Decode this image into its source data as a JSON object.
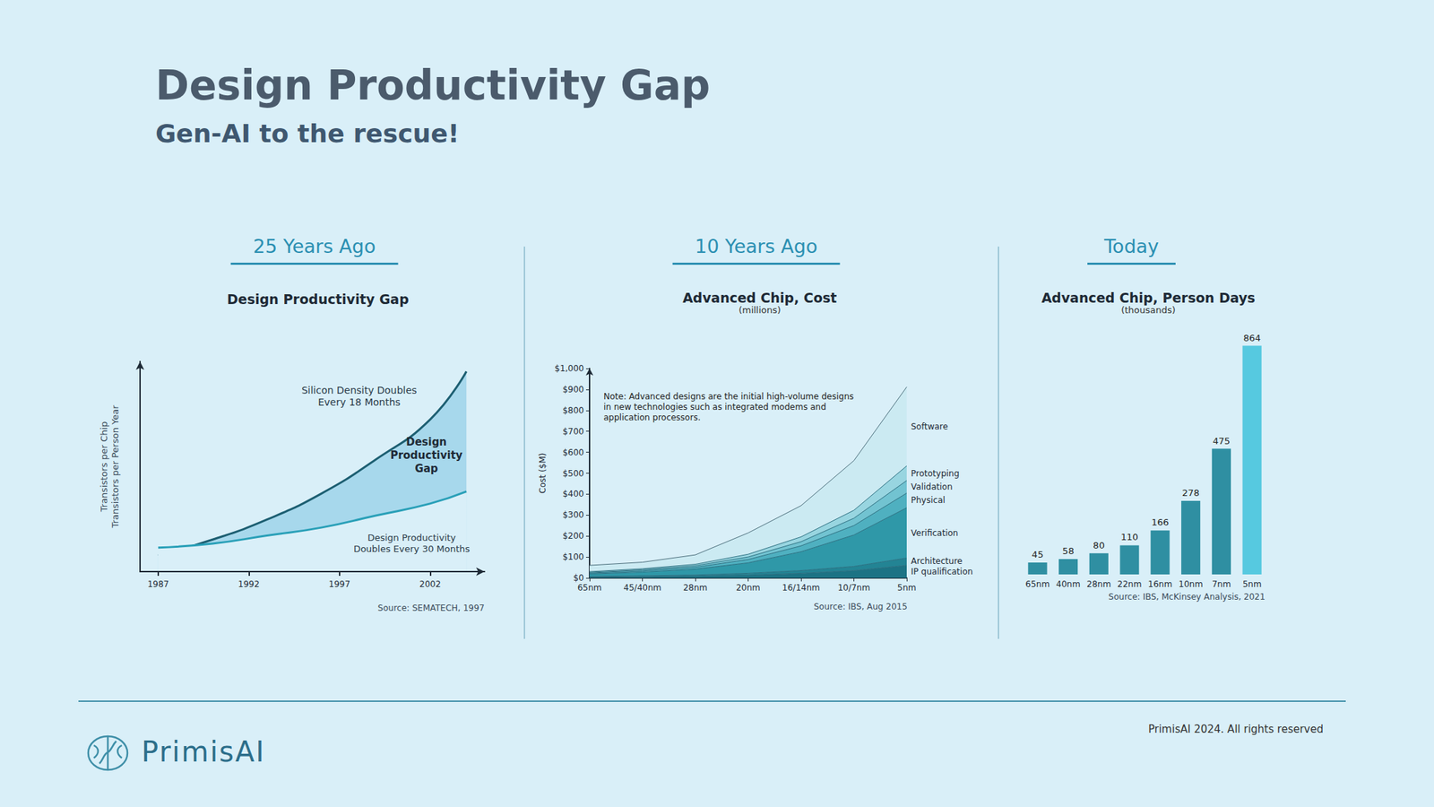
{
  "title": "Design Productivity Gap",
  "subtitle": "Gen-AI to the rescue!",
  "logo": "PrimisAI",
  "footer": "PrimisAI 2024. All rights reserved",
  "chart_data": [
    {
      "type": "line",
      "heading": "25 Years Ago",
      "title": "Design Productivity Gap",
      "ylabel": [
        "Transistors per Chip",
        "Transistors per Person Year"
      ],
      "annotation": "Design Productivity Gap",
      "source": "Source: SEMATECH, 1997",
      "x": [
        1987,
        1990,
        1993,
        1996,
        1999,
        2002,
        2004
      ],
      "xlim": [
        1986,
        2005
      ],
      "xticks": [
        1987,
        1992,
        1997,
        2002
      ],
      "ylim": [
        0,
        105
      ],
      "tick_labels": "x",
      "grid": false,
      "series": [
        {
          "name": "Silicon Density Doubles Every 18 Months",
          "color": "#1d5f72",
          "values": [
            8,
            16,
            26,
            39,
            56,
            76,
            100
          ]
        },
        {
          "name": "Design Productivity Doubles Every 30 Months",
          "color": "#2aa0b8",
          "values": [
            12,
            14,
            18,
            22,
            28,
            34,
            40
          ]
        }
      ]
    },
    {
      "type": "area",
      "heading": "10 Years Ago",
      "title": "Advanced Chip, Cost",
      "subtitle": "(millions)",
      "ylabel": "Cost ($M)",
      "note": "Note: Advanced designs are the initial high-volume designs in new technologies such as integrated modems and application processors.",
      "source": "Source: IBS, Aug 2015",
      "categories": [
        "65nm",
        "45/40nm",
        "28nm",
        "20nm",
        "16/14nm",
        "10/7nm",
        "5nm"
      ],
      "ylim": [
        0,
        1000
      ],
      "yticks": [
        {
          "value": 0,
          "label": "$0"
        },
        {
          "value": 100,
          "label": "$100"
        },
        {
          "value": 200,
          "label": "$200"
        },
        {
          "value": 300,
          "label": "$300"
        },
        {
          "value": 400,
          "label": "$400"
        },
        {
          "value": 500,
          "label": "$500"
        },
        {
          "value": 600,
          "label": "$600"
        },
        {
          "value": 700,
          "label": "$700"
        },
        {
          "value": 800,
          "label": "$800"
        },
        {
          "value": 900,
          "label": "$900"
        },
        {
          "value": 1000,
          "label": "$1,000"
        }
      ],
      "stacked": true,
      "grid": false,
      "series": [
        {
          "name": "IP qualification",
          "color": "#1c7384",
          "values": [
            4,
            6,
            9,
            14,
            22,
            35,
            60
          ]
        },
        {
          "name": "Architecture",
          "color": "#238494",
          "values": [
            3,
            4,
            5,
            8,
            13,
            20,
            35
          ]
        },
        {
          "name": "Verification",
          "color": "#2f98a8",
          "values": [
            12,
            18,
            28,
            50,
            90,
            150,
            240
          ]
        },
        {
          "name": "Physical",
          "color": "#4fb0c0",
          "values": [
            4,
            6,
            9,
            16,
            28,
            45,
            70
          ]
        },
        {
          "name": "Validation",
          "color": "#72c3d1",
          "values": [
            3,
            5,
            7,
            12,
            20,
            35,
            60
          ]
        },
        {
          "name": "Prototyping",
          "color": "#98d5e0",
          "values": [
            4,
            5,
            7,
            13,
            23,
            38,
            70
          ]
        },
        {
          "name": "Software",
          "color": "#cbeaf2",
          "values": [
            30,
            31,
            45,
            102,
            149,
            237,
            377
          ]
        }
      ]
    },
    {
      "type": "bar",
      "heading": "Today",
      "title": "Advanced Chip, Person Days",
      "subtitle": "(thousands)",
      "source": "Source: IBS, McKinsey Analysis, 2021",
      "categories": [
        "65nm",
        "40nm",
        "28nm",
        "22nm",
        "16nm",
        "10nm",
        "7nm",
        "5nm"
      ],
      "values": [
        45,
        58,
        80,
        110,
        166,
        278,
        475,
        864
      ],
      "colors": [
        "#2f8fa2",
        "#2f8fa2",
        "#2f8fa2",
        "#2f8fa2",
        "#2f8fa2",
        "#2f8fa2",
        "#2f8fa2",
        "#56c9e0"
      ],
      "ylim": [
        0,
        900
      ],
      "data_labels": true,
      "tick_labels": "x",
      "grid": false
    }
  ]
}
